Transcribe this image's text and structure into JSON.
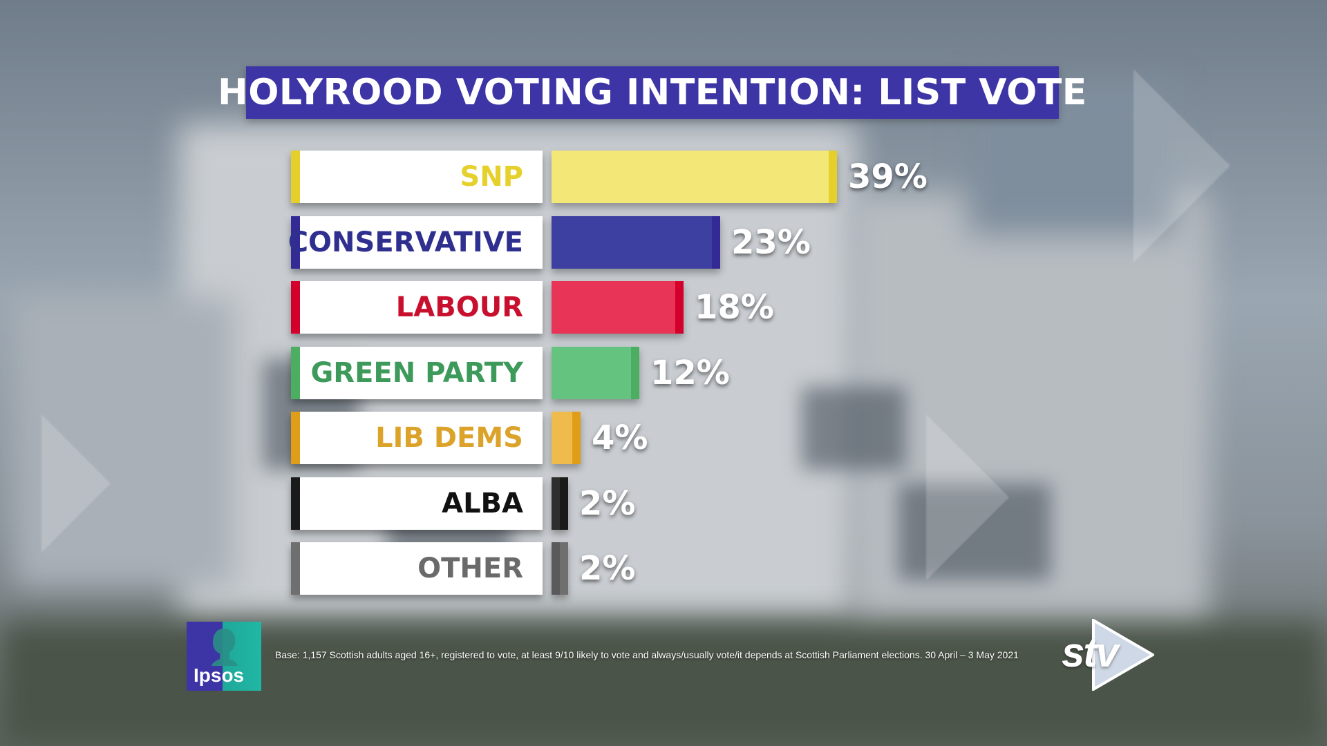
{
  "title": "HOLYROOD VOTING INTENTION: LIST VOTE",
  "chart_data": {
    "type": "bar",
    "orientation": "horizontal",
    "title": "HOLYROOD VOTING INTENTION: LIST VOTE",
    "categories": [
      "SNP",
      "CONSERVATIVE",
      "LABOUR",
      "GREEN PARTY",
      "LIB DEMS",
      "ALBA",
      "OTHER"
    ],
    "values": [
      39,
      23,
      18,
      12,
      4,
      2,
      2
    ],
    "value_labels": [
      "39%",
      "23%",
      "18%",
      "12%",
      "4%",
      "2%",
      "2%"
    ],
    "colors": [
      "#f3e877",
      "#3d3fa1",
      "#e83456",
      "#63c37f",
      "#eebb4c",
      "#2e2e2e",
      "#5a5a5a"
    ],
    "edge_colors": [
      "#e5cf2a",
      "#332a95",
      "#d3002c",
      "#4cae63",
      "#e09d1a",
      "#1a1a1a",
      "#6f6f6f"
    ],
    "label_colors": [
      "#e6d02b",
      "#2f2f8f",
      "#c8102e",
      "#3d9a5a",
      "#dca32b",
      "#111111",
      "#6a6a6a"
    ],
    "xlim": [
      0,
      39
    ],
    "grid": false,
    "legend": false
  },
  "footnote": "Base: 1,157 Scottish adults aged 16+, registered to vote, at least 9/10 likely to vote and always/usually vote/it depends at Scottish Parliament elections.  30 April – 3 May 2021",
  "logos": {
    "ipsos": "Ipsos",
    "stv": "stv"
  }
}
